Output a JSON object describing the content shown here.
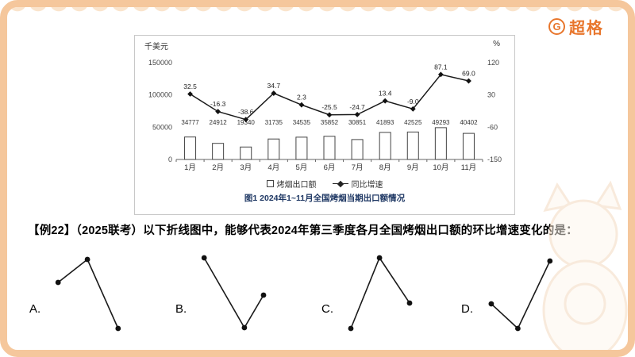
{
  "brand": {
    "logo_letter": "G",
    "logo_text": "超格"
  },
  "chart_data": {
    "type": "combo-bar-line",
    "title": "图1 2024年1~11月全国烤烟当期出口额情况",
    "unit_left": "千美元",
    "unit_right": "%",
    "categories": [
      "1月",
      "2月",
      "3月",
      "4月",
      "5月",
      "6月",
      "7月",
      "8月",
      "9月",
      "10月",
      "11月"
    ],
    "bar_series": {
      "name": "烤烟出口额",
      "values": [
        34777,
        24912,
        19340,
        31735,
        34535,
        35852,
        30851,
        41893,
        42525,
        49293,
        40402
      ]
    },
    "line_series": {
      "name": "同比增速",
      "values": [
        32.5,
        -16.3,
        -38.6,
        34.7,
        2.3,
        -25.5,
        -24.7,
        13.4,
        -9.0,
        87.1,
        69.0
      ]
    },
    "left_axis": {
      "min": 0,
      "max": 150000,
      "ticks": [
        0,
        50000,
        100000,
        150000
      ]
    },
    "right_axis": {
      "min": -150,
      "max": 120,
      "ticks": [
        -150,
        -60,
        30,
        120
      ]
    },
    "legend_position": "bottom",
    "grid": false
  },
  "question": {
    "text": "【例22】（2025联考）以下折线图中，能够代表2024年第三季度各月全国烤烟出口额的环比增速变化的是："
  },
  "options": [
    {
      "label": "A.",
      "points": [
        [
          6,
          36
        ],
        [
          49,
          7
        ],
        [
          94,
          94
        ]
      ]
    },
    {
      "label": "B.",
      "points": [
        [
          6,
          5
        ],
        [
          65,
          93
        ],
        [
          93,
          52
        ]
      ]
    },
    {
      "label": "C.",
      "points": [
        [
          7,
          94
        ],
        [
          49,
          5
        ],
        [
          93,
          62
        ]
      ]
    },
    {
      "label": "D.",
      "points": [
        [
          8,
          63
        ],
        [
          47,
          94
        ],
        [
          94,
          9
        ]
      ]
    }
  ],
  "colors": {
    "accent": "#E8762C",
    "border": "#F5C79C",
    "chart_title": "#1F3864"
  }
}
